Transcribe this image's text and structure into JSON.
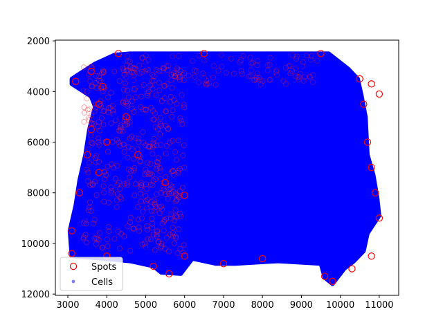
{
  "chart_data": {
    "type": "scatter",
    "title": "",
    "xlabel": "",
    "ylabel": "",
    "xlim": [
      2680,
      11500
    ],
    "ylim": [
      12050,
      1970
    ],
    "y_inverted": true,
    "x_ticks": [
      3000,
      4000,
      5000,
      6000,
      7000,
      8000,
      9000,
      10000,
      11000
    ],
    "y_ticks": [
      2000,
      4000,
      6000,
      8000,
      10000,
      12000
    ],
    "x_tick_labels": [
      "3000",
      "4000",
      "5000",
      "6000",
      "7000",
      "8000",
      "9000",
      "10000",
      "11000"
    ],
    "y_tick_labels": [
      "2000",
      "4000",
      "6000",
      "8000",
      "10000",
      "12000"
    ],
    "legend": {
      "position": "lower-left",
      "entries": [
        "Spots",
        "Cells"
      ]
    },
    "series": [
      {
        "name": "Spots",
        "marker": "hollow-circle",
        "color": "#ff0000",
        "points": [
          [
            3200,
            3600
          ],
          [
            3600,
            3200
          ],
          [
            4300,
            2500
          ],
          [
            6500,
            2500
          ],
          [
            9500,
            2500
          ],
          [
            10500,
            3500
          ],
          [
            10600,
            4500
          ],
          [
            10700,
            6000
          ],
          [
            10800,
            7000
          ],
          [
            10900,
            8000
          ],
          [
            11000,
            9000
          ],
          [
            10800,
            10500
          ],
          [
            10300,
            11000
          ],
          [
            9800,
            11500
          ],
          [
            9600,
            11300
          ],
          [
            8000,
            10600
          ],
          [
            7000,
            10800
          ],
          [
            6000,
            10500
          ],
          [
            5600,
            11200
          ],
          [
            5200,
            10900
          ],
          [
            4000,
            10500
          ],
          [
            3100,
            10400
          ],
          [
            3100,
            9500
          ],
          [
            3300,
            8000
          ],
          [
            3500,
            6500
          ],
          [
            3600,
            5500
          ],
          [
            3800,
            4500
          ],
          [
            3900,
            3800
          ],
          [
            10800,
            3700
          ],
          [
            11000,
            4100
          ],
          [
            4500,
            5000
          ],
          [
            4000,
            6000
          ],
          [
            3800,
            7200
          ],
          [
            4800,
            6500
          ],
          [
            5500,
            7600
          ],
          [
            6000,
            8100
          ]
        ]
      },
      {
        "name": "Cells",
        "marker": "filled-circle",
        "color": "#0000ff",
        "points": [
          [
            3500,
            4000
          ],
          [
            5000,
            3000
          ],
          [
            7000,
            2800
          ],
          [
            9000,
            3000
          ],
          [
            10000,
            4000
          ],
          [
            10200,
            6000
          ],
          [
            10400,
            8000
          ],
          [
            10300,
            10000
          ],
          [
            9000,
            10300
          ],
          [
            7000,
            10400
          ],
          [
            5000,
            10200
          ],
          [
            3600,
            10000
          ],
          [
            3400,
            9000
          ],
          [
            3700,
            7000
          ],
          [
            4200,
            5000
          ],
          [
            6000,
            5000
          ],
          [
            8000,
            6000
          ],
          [
            7000,
            8000
          ],
          [
            9000,
            9000
          ],
          [
            5000,
            8500
          ],
          [
            8500,
            4000
          ],
          [
            6500,
            3500
          ],
          [
            4600,
            3600
          ],
          [
            10000,
            11200
          ]
        ]
      }
    ]
  }
}
